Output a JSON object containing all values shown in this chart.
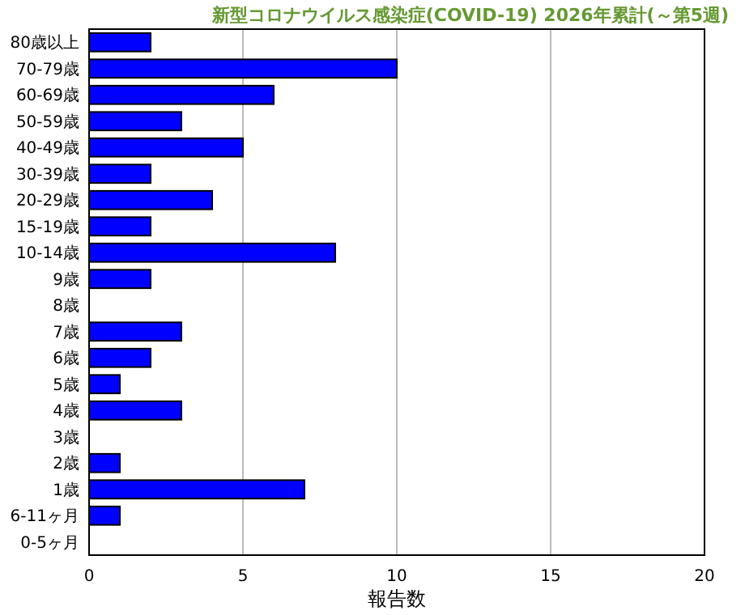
{
  "chart_data": {
    "type": "bar",
    "orientation": "horizontal",
    "title": "新型コロナウイルス感染症(COVID-19) 2026年累計(～第5週)",
    "xlabel": "報告数",
    "categories": [
      "80歳以上",
      "70-79歳",
      "60-69歳",
      "50-59歳",
      "40-49歳",
      "30-39歳",
      "20-29歳",
      "15-19歳",
      "10-14歳",
      "9歳",
      "8歳",
      "7歳",
      "6歳",
      "5歳",
      "4歳",
      "3歳",
      "2歳",
      "1歳",
      "6-11ヶ月",
      "0-5ヶ月"
    ],
    "values": [
      2,
      10,
      6,
      3,
      5,
      2,
      4,
      2,
      8,
      2,
      0,
      3,
      2,
      1,
      3,
      0,
      1,
      7,
      1,
      0
    ],
    "color": "#0000ff",
    "xlim": [
      0,
      20
    ],
    "xticks": [
      0,
      5,
      10,
      15,
      20
    ],
    "grid": "x"
  }
}
